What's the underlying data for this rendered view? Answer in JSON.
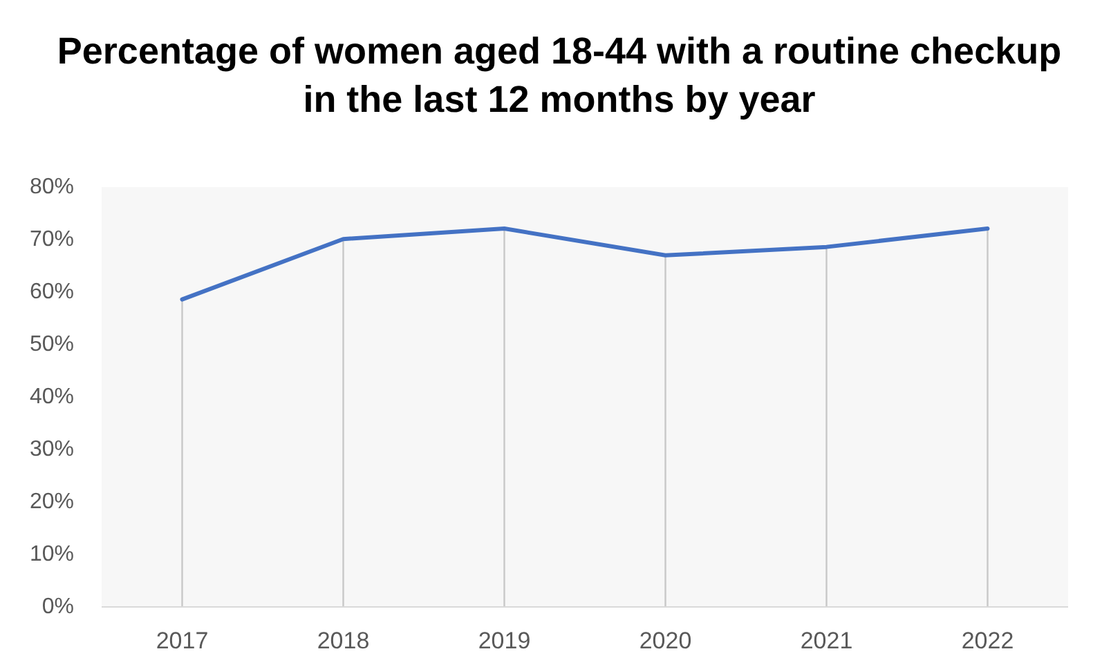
{
  "chart_data": {
    "type": "line",
    "title": "Percentage of women aged 18-44 with a routine checkup in the last 12 months by year",
    "categories": [
      "2017",
      "2018",
      "2019",
      "2020",
      "2021",
      "2022"
    ],
    "series": [
      {
        "color": "#4472c4",
        "values": [
          58.6,
          70.1,
          72.1,
          67.0,
          68.6,
          72.1
        ]
      }
    ],
    "ylim": [
      0,
      80
    ],
    "yticks": [
      {
        "value": 0,
        "label": "0%"
      },
      {
        "value": 10,
        "label": "10%"
      },
      {
        "value": 20,
        "label": "20%"
      },
      {
        "value": 30,
        "label": "30%"
      },
      {
        "value": 40,
        "label": "40%"
      },
      {
        "value": 50,
        "label": "50%"
      },
      {
        "value": 60,
        "label": "60%"
      },
      {
        "value": 70,
        "label": "70%"
      },
      {
        "value": 80,
        "label": "80%"
      }
    ],
    "grid": "x",
    "marker": "none",
    "line_style": "solid"
  }
}
